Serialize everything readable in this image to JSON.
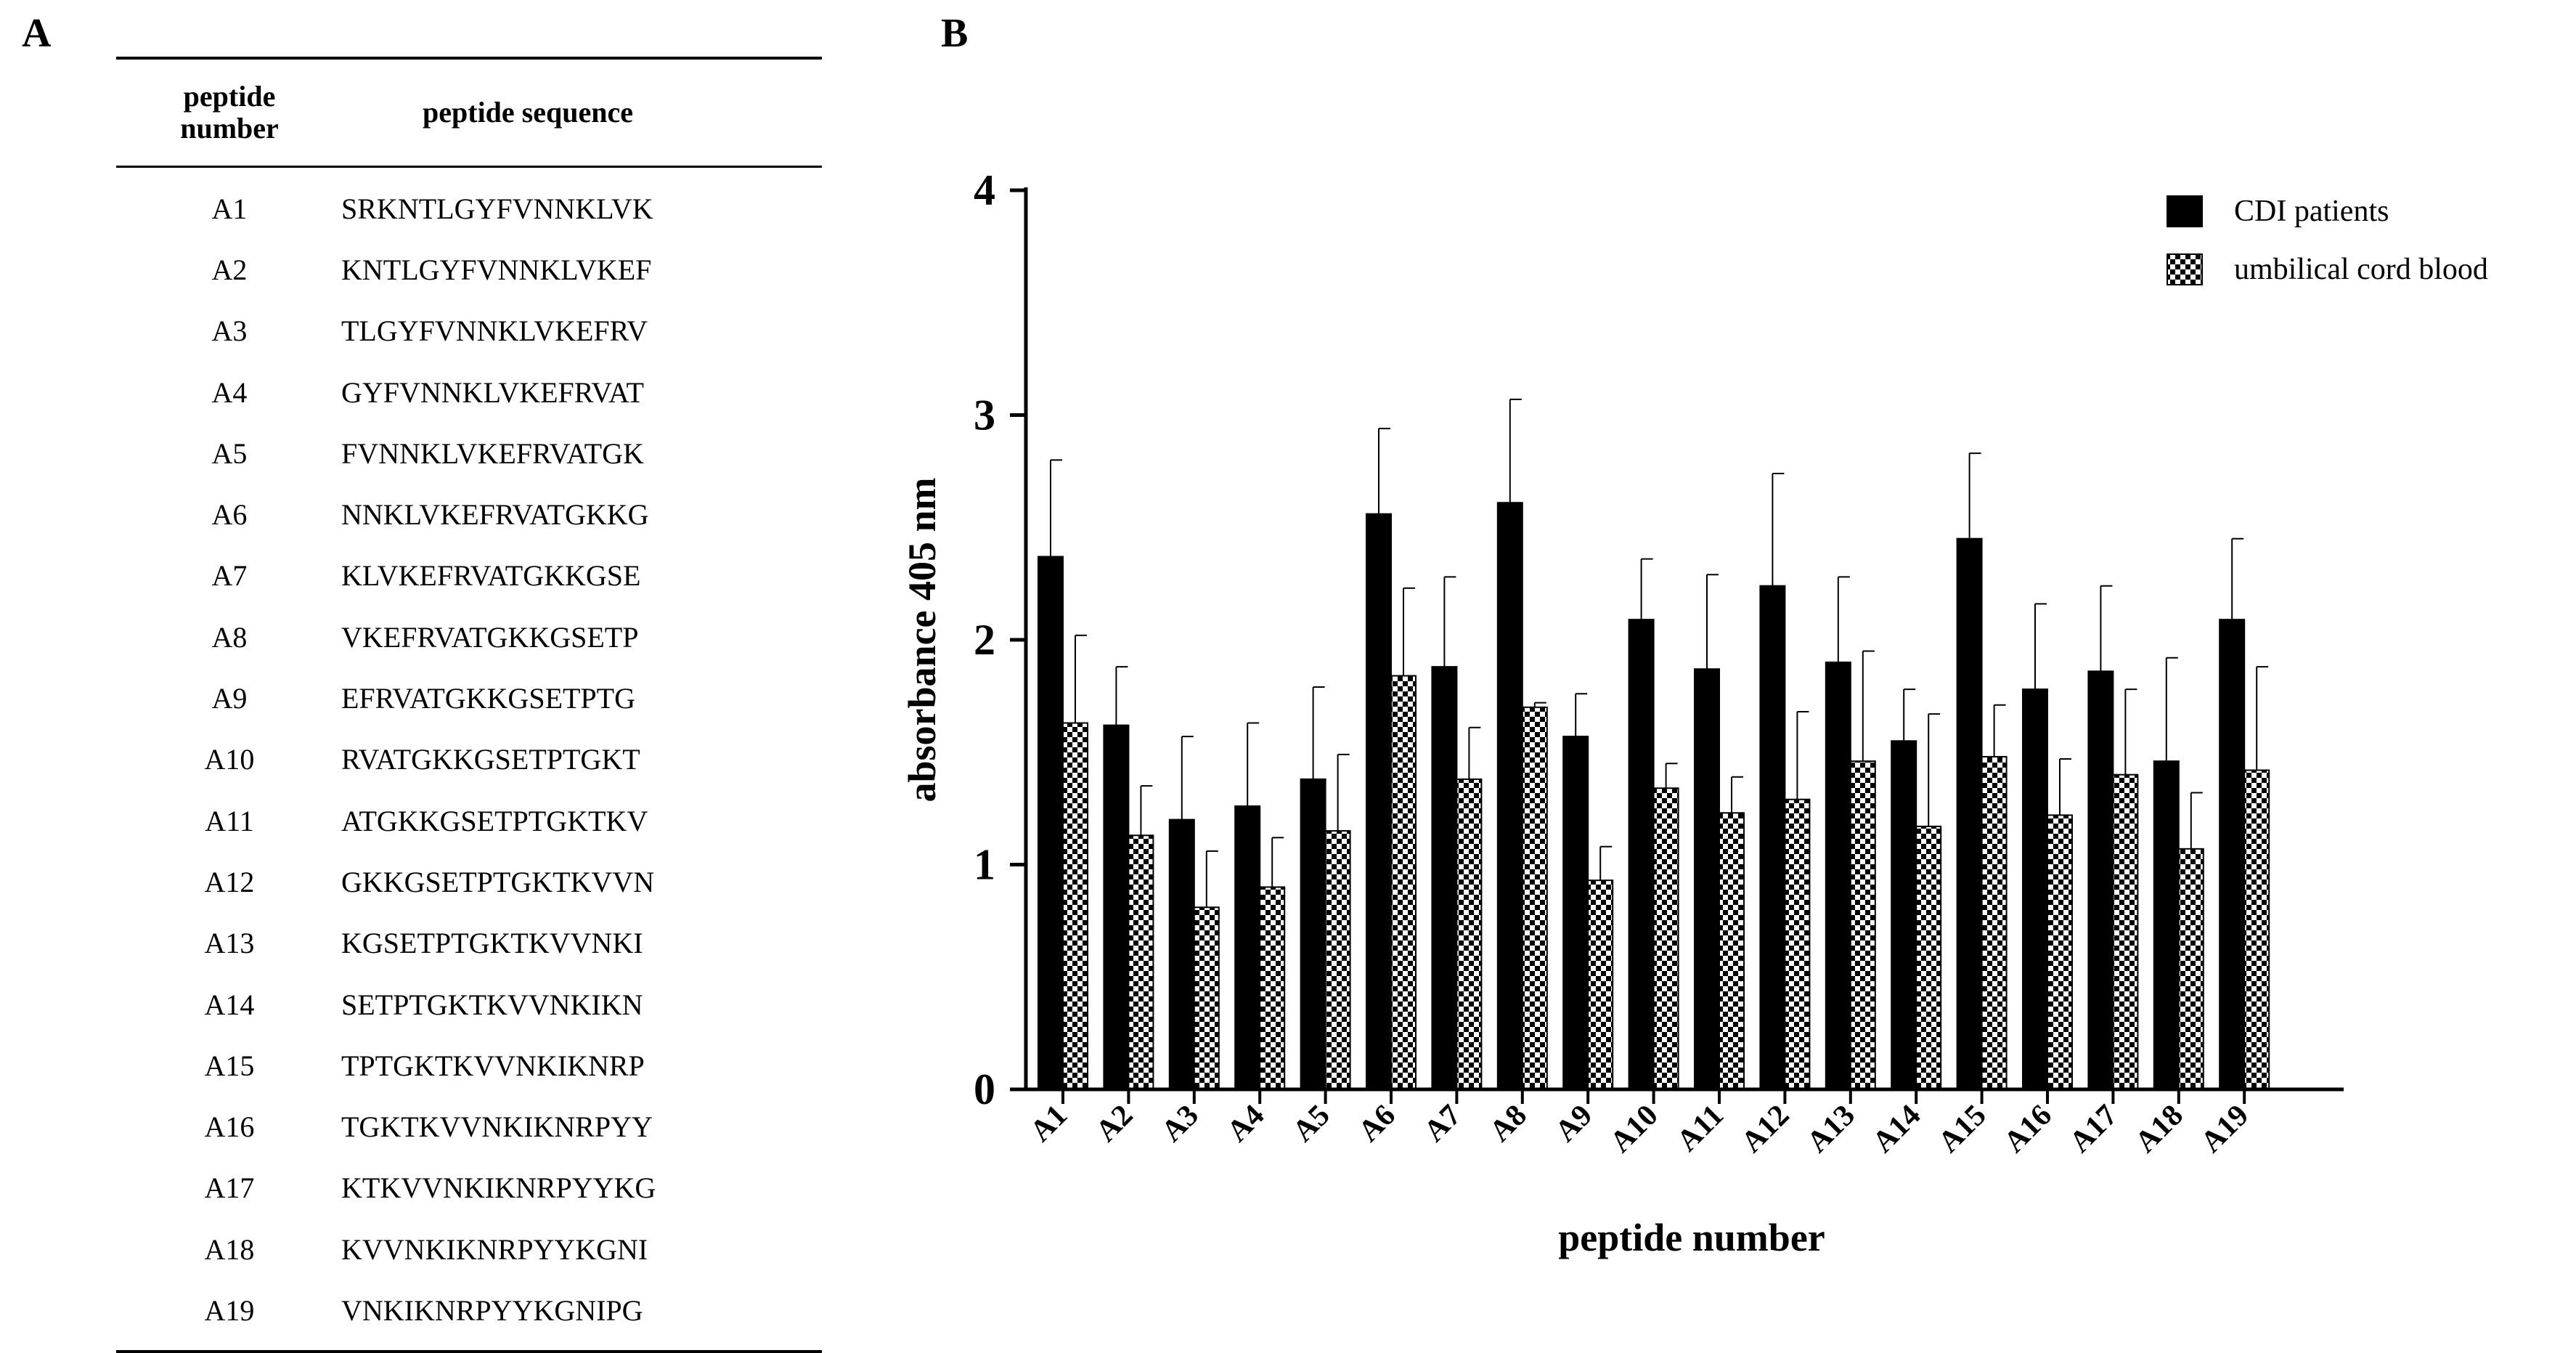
{
  "panel_labels": {
    "a": "A",
    "b": "B"
  },
  "table": {
    "header_number": [
      "peptide",
      "number"
    ],
    "header_sequence": "peptide sequence",
    "rows": [
      {
        "number": "A1",
        "sequence": "SRKNTLGYFVNNKLVK"
      },
      {
        "number": "A2",
        "sequence": "KNTLGYFVNNKLVKEF"
      },
      {
        "number": "A3",
        "sequence": "TLGYFVNNKLVKEFRV"
      },
      {
        "number": "A4",
        "sequence": "GYFVNNKLVKEFRVAT"
      },
      {
        "number": "A5",
        "sequence": "FVNNKLVKEFRVATGK"
      },
      {
        "number": "A6",
        "sequence": "NNKLVKEFRVATGKKG"
      },
      {
        "number": "A7",
        "sequence": "KLVKEFRVATGKKGSE"
      },
      {
        "number": "A8",
        "sequence": "VKEFRVATGKKGSETP"
      },
      {
        "number": "A9",
        "sequence": "EFRVATGKKGSETPTG"
      },
      {
        "number": "A10",
        "sequence": "RVATGKKGSETPTGKT"
      },
      {
        "number": "A11",
        "sequence": "ATGKKGSETPTGKTKV"
      },
      {
        "number": "A12",
        "sequence": "GKKGSETPTGKTKVVN"
      },
      {
        "number": "A13",
        "sequence": "KGSETPTGKTKVVNKI"
      },
      {
        "number": "A14",
        "sequence": "SETPTGKTKVVNKIKN"
      },
      {
        "number": "A15",
        "sequence": "TPTGKTKVVNKIKNRP"
      },
      {
        "number": "A16",
        "sequence": "TGKTKVVNKIKNRPYY"
      },
      {
        "number": "A17",
        "sequence": "KTKVVNKIKNRPYYKG"
      },
      {
        "number": "A18",
        "sequence": "KVVNKIKNRPYYKGNI"
      },
      {
        "number": "A19",
        "sequence": "VNKIKNRPYYKGNIPG"
      }
    ]
  },
  "chart_data": {
    "type": "bar",
    "title": "",
    "xlabel": "peptide number",
    "ylabel": "absorbance 405 nm",
    "ylim": [
      0,
      4
    ],
    "yticks": [
      0,
      1,
      2,
      3,
      4
    ],
    "grid": false,
    "legend_position": "top-right",
    "categories": [
      "A1",
      "A2",
      "A3",
      "A4",
      "A5",
      "A6",
      "A7",
      "A8",
      "A9",
      "A10",
      "A11",
      "A12",
      "A13",
      "A14",
      "A15",
      "A16",
      "A17",
      "A18",
      "A19"
    ],
    "series": [
      {
        "name": "CDI patients",
        "fill": "#000000",
        "pattern": "solid",
        "values": [
          2.37,
          1.62,
          1.2,
          1.26,
          1.38,
          2.56,
          1.88,
          2.61,
          1.57,
          2.09,
          1.87,
          2.24,
          1.9,
          1.55,
          2.45,
          1.78,
          1.86,
          1.46,
          2.09
        ],
        "errors": [
          0.43,
          0.26,
          0.37,
          0.37,
          0.41,
          0.38,
          0.4,
          0.46,
          0.19,
          0.27,
          0.42,
          0.5,
          0.38,
          0.23,
          0.38,
          0.38,
          0.38,
          0.46,
          0.36
        ]
      },
      {
        "name": "umbilical cord blood",
        "fill": "#ffffff",
        "pattern": "checkered",
        "values": [
          1.63,
          1.13,
          0.81,
          0.9,
          1.15,
          1.84,
          1.38,
          1.7,
          0.93,
          1.34,
          1.23,
          1.29,
          1.46,
          1.17,
          1.48,
          1.22,
          1.4,
          1.07,
          1.42
        ],
        "errors": [
          0.39,
          0.22,
          0.25,
          0.22,
          0.34,
          0.39,
          0.23,
          0.02,
          0.15,
          0.11,
          0.16,
          0.39,
          0.49,
          0.5,
          0.23,
          0.25,
          0.38,
          0.25,
          0.46
        ]
      }
    ]
  }
}
